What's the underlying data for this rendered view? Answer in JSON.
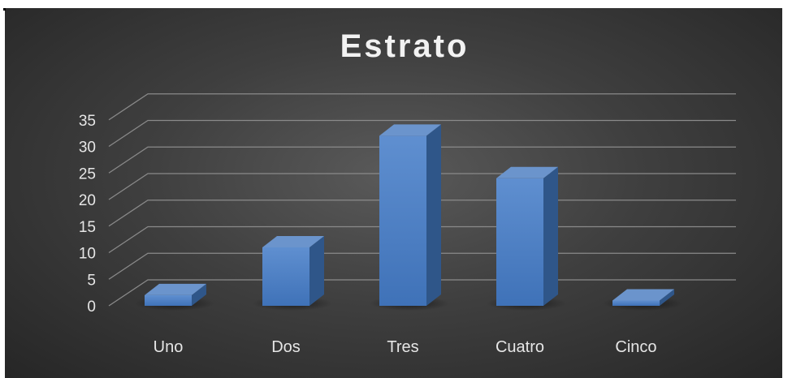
{
  "chart_data": {
    "type": "bar",
    "title": "Estrato",
    "categories": [
      "Uno",
      "Dos",
      "Tres",
      "Cuatro",
      "Cinco"
    ],
    "values": [
      2,
      11,
      32,
      24,
      1
    ],
    "ylim": [
      0,
      35
    ],
    "yticks": [
      0,
      5,
      10,
      15,
      20,
      25,
      30,
      35
    ],
    "xlabel": "",
    "ylabel": "",
    "grid": true,
    "legend": "none",
    "style": "3d-column",
    "colors": {
      "bar_front": "#4f81bd",
      "bar_top": "#6b94cc",
      "bar_side": "#2f5689",
      "background": "#3f3f3f",
      "grid": "#8a8a8a",
      "text": "#e6e6e6"
    }
  }
}
